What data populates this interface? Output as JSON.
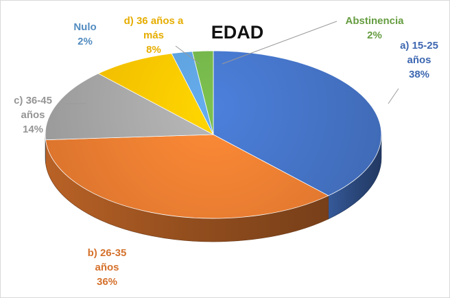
{
  "chart_data": {
    "type": "pie",
    "title": "EDAD",
    "slices": [
      {
        "category": "a) 15-25 años",
        "label_lines": [
          "a) 15-25",
          "años",
          "38%"
        ],
        "value": 38,
        "color": "#4472C4"
      },
      {
        "category": "b) 26-35 años",
        "label_lines": [
          "b) 26-35",
          "años",
          "36%"
        ],
        "value": 36,
        "color": "#ED7D31"
      },
      {
        "category": "c) 36-45 años",
        "label_lines": [
          "c) 36-45",
          "años",
          "14%"
        ],
        "value": 14,
        "color": "#A5A5A5"
      },
      {
        "category": "d) 36 años a más",
        "label_lines": [
          "d) 36 años a",
          "más",
          "8%"
        ],
        "value": 8,
        "color": "#FFC000"
      },
      {
        "category": "Nulo",
        "label_lines": [
          "Nulo",
          "2%"
        ],
        "value": 2,
        "color": "#5B9BD5"
      },
      {
        "category": "Abstinencia",
        "label_lines": [
          "Abstinencia",
          "2%"
        ],
        "value": 2,
        "color": "#70AD47"
      }
    ],
    "style": "3d-pie",
    "legend": "none"
  }
}
